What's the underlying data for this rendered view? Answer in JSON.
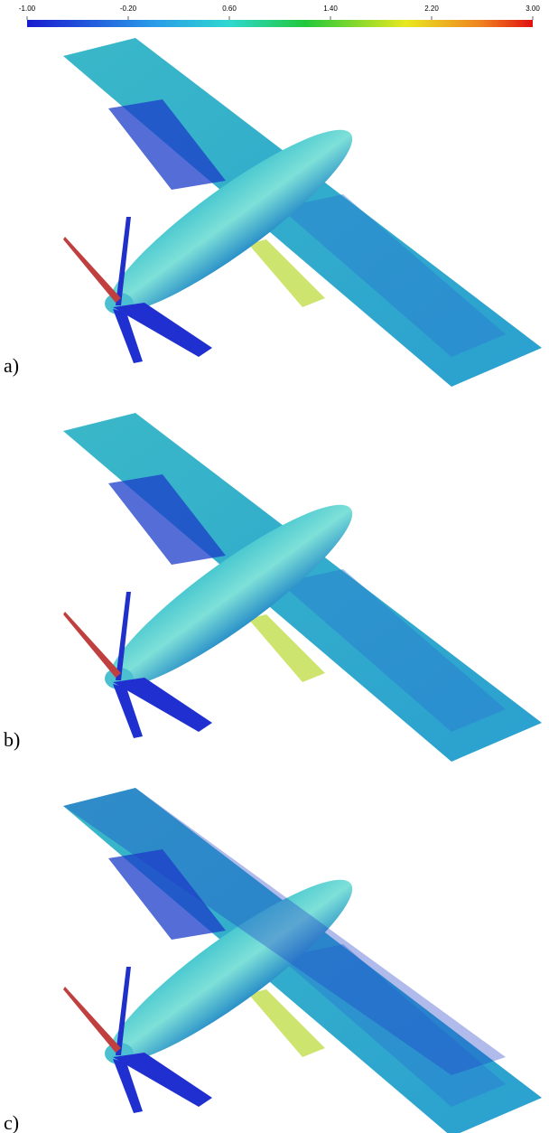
{
  "colorbar": {
    "range": [
      -1,
      3
    ],
    "ticks": [
      {
        "value": -1,
        "label": "-1.00"
      },
      {
        "value": -0.2,
        "label": "-0.20"
      },
      {
        "value": 0.6,
        "label": "0.60"
      },
      {
        "value": 1.4,
        "label": "1.40"
      },
      {
        "value": 2.2,
        "label": "2.20"
      },
      {
        "value": 3,
        "label": "3.00"
      }
    ]
  },
  "panels": [
    {
      "label": "a)"
    },
    {
      "label": "b)"
    },
    {
      "label": "c)"
    }
  ]
}
